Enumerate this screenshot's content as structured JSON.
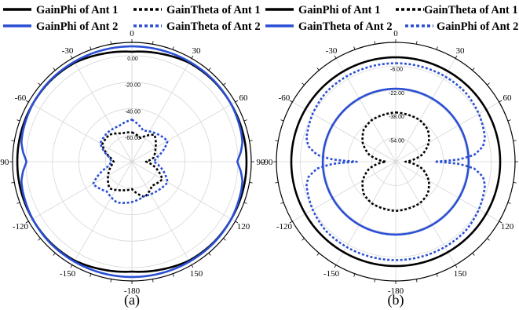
{
  "chart_data": [
    {
      "type": "polar-line",
      "panel_label": "(a)",
      "legend": [
        {
          "name": "GainPhi of Ant 1",
          "color": "#000000",
          "dashed": false
        },
        {
          "name": "GainTheta of Ant 1",
          "color": "#000000",
          "dashed": true
        },
        {
          "name": "GainPhi of Ant 2",
          "color": "#2a4fd4",
          "dashed": false
        },
        {
          "name": "GainTheta of Ant 2",
          "color": "#2a4fd4",
          "dashed": true
        }
      ],
      "angle_ticks": [
        "0",
        "30",
        "60",
        "90",
        "120",
        "150",
        "-180",
        "-150",
        "-120",
        "-90",
        "-60",
        "-30"
      ],
      "angle_tick_values": [
        0,
        30,
        60,
        90,
        120,
        150,
        180,
        -150,
        -120,
        -90,
        -60,
        -30
      ],
      "radial_ticks": [
        "0.00",
        "-20.00",
        "-40.00",
        "-60.00"
      ],
      "radial_tick_values": [
        0,
        -20,
        -40,
        -60
      ],
      "r_range_db": [
        -80,
        10
      ],
      "grid": true,
      "series": [
        {
          "name": "GainPhi of Ant 1",
          "angles": [
            0,
            15,
            30,
            45,
            60,
            75,
            90,
            105,
            120,
            135,
            150,
            165,
            180,
            195,
            210,
            225,
            240,
            255,
            270,
            285,
            300,
            315,
            330,
            345
          ],
          "values": [
            2.9,
            4.3,
            6.2,
            6.6,
            6.5,
            6.5,
            6.4,
            6.5,
            6.5,
            6.6,
            6.2,
            4.3,
            2.9,
            4.3,
            6.2,
            6.6,
            6.5,
            6.5,
            6.4,
            6.5,
            6.5,
            6.6,
            6.2,
            4.3
          ]
        },
        {
          "name": "GainPhi of Ant 2",
          "angles": [
            0,
            15,
            30,
            45,
            60,
            75,
            80,
            85,
            88,
            90,
            92,
            95,
            100,
            105,
            120,
            135,
            150,
            165,
            180,
            195,
            210,
            225,
            240,
            255,
            260,
            265,
            268,
            270,
            272,
            275,
            280,
            285,
            300,
            315,
            330,
            345
          ],
          "values": [
            7.0,
            7.0,
            7.0,
            7.0,
            6.5,
            5.3,
            4.6,
            2.4,
            0.5,
            -0.5,
            0.5,
            2.4,
            4.6,
            5.3,
            6.5,
            7.0,
            7.0,
            7.0,
            7.0,
            7.0,
            7.0,
            7.0,
            6.5,
            5.3,
            4.6,
            2.4,
            0.5,
            -0.5,
            0.5,
            2.4,
            4.6,
            5.3,
            6.5,
            7.0,
            7.0,
            7.0
          ]
        },
        {
          "name": "GainTheta of Ant 1",
          "angles": [
            0,
            20,
            40,
            60,
            80,
            90,
            100,
            120,
            140,
            160,
            180,
            200,
            220,
            240,
            260,
            270,
            280,
            300,
            320,
            340
          ],
          "values": [
            -57.9,
            -61.0,
            -53.5,
            -59.5,
            -63.6,
            -69.3,
            -63.8,
            -53.5,
            -56.4,
            -51.6,
            -59.3,
            -57.1,
            -53.7,
            -59.3,
            -64.5,
            -66.3,
            -63.8,
            -54.1,
            -53.5,
            -57.4
          ]
        },
        {
          "name": "GainTheta of Ant 2",
          "angles": [
            0,
            20,
            40,
            60,
            80,
            90,
            100,
            120,
            140,
            160,
            180,
            200,
            220,
            240,
            260,
            270,
            280,
            300,
            320,
            340
          ],
          "values": [
            -48.3,
            -55.1,
            -52.1,
            -48.9,
            -60.8,
            -63.6,
            -58.4,
            -48.9,
            -50.9,
            -52.4,
            -49.6,
            -47.2,
            -50.6,
            -46.1,
            -62.7,
            -64.5,
            -63.3,
            -52.4,
            -51.4,
            -51.4
          ]
        }
      ]
    },
    {
      "type": "polar-line",
      "panel_label": "(b)",
      "legend": [
        {
          "name": "GainPhi of Ant 1",
          "color": "#000000",
          "dashed": false
        },
        {
          "name": "GainTheta of Ant 1",
          "color": "#000000",
          "dashed": true
        },
        {
          "name": "GainTheta of Ant 2",
          "color": "#2a4fd4",
          "dashed": false
        },
        {
          "name": "GainPhi of Ant 2",
          "color": "#2a4fd4",
          "dashed": true
        }
      ],
      "angle_ticks": [
        "0",
        "30",
        "60",
        "90",
        "120",
        "150",
        "-180",
        "-150",
        "-120",
        "-90",
        "-60",
        "-30"
      ],
      "angle_tick_values": [
        0,
        30,
        60,
        90,
        120,
        150,
        180,
        -150,
        -120,
        -90,
        -60,
        -30
      ],
      "radial_ticks": [
        "-6.00",
        "-22.00",
        "-38.00",
        "-54.00"
      ],
      "radial_tick_values": [
        -6,
        -22,
        -38,
        -54
      ],
      "r_range_db": [
        -70,
        10
      ],
      "grid": true,
      "series": [
        {
          "name": "GainPhi of Ant 1",
          "angles": [
            0,
            30,
            60,
            90,
            120,
            150,
            180,
            210,
            240,
            270,
            300,
            330
          ],
          "values": [
            0.0,
            0.0,
            0.0,
            0.0,
            0.0,
            0.0,
            0.0,
            0.0,
            0.0,
            0.0,
            0.0,
            0.0
          ]
        },
        {
          "name": "GainTheta of Ant 2",
          "angles": [
            0,
            15,
            30,
            45,
            60,
            75,
            80,
            85,
            88,
            90,
            92,
            95,
            100,
            105,
            120,
            135,
            150,
            165,
            180,
            195,
            210,
            225,
            240,
            255,
            260,
            265,
            268,
            270,
            272,
            275,
            280,
            285,
            300,
            315,
            330,
            345
          ],
          "values": [
            -4.0,
            -4.0,
            -4.0,
            -4.1,
            -5.7,
            -8.1,
            -10.6,
            -17.2,
            -27.8,
            -43.9,
            -27.8,
            -17.2,
            -10.6,
            -8.1,
            -5.7,
            -4.1,
            -4.0,
            -4.0,
            -4.0,
            -4.0,
            -4.0,
            -4.1,
            -5.7,
            -8.1,
            -10.6,
            -17.2,
            -27.8,
            -43.9,
            -27.8,
            -17.2,
            -10.6,
            -8.1,
            -5.7,
            -4.1,
            -4.0,
            -4.0
          ]
        },
        {
          "name": "GainPhi of Ant 2",
          "angles": [
            0,
            30,
            60,
            90,
            120,
            150,
            180,
            210,
            240,
            270,
            300,
            330
          ],
          "values": [
            -21.1,
            -21.1,
            -21.1,
            -21.1,
            -21.1,
            -21.1,
            -21.1,
            -21.1,
            -21.1,
            -21.1,
            -21.1,
            -21.1
          ]
        },
        {
          "name": "GainTheta of Ant 1",
          "angles": [
            0,
            15,
            30,
            45,
            60,
            75,
            80,
            85,
            88,
            90,
            92,
            95,
            100,
            105,
            120,
            135,
            150,
            165,
            180,
            195,
            210,
            225,
            240,
            255,
            260,
            265,
            268,
            270,
            272,
            275,
            280,
            285,
            300,
            315,
            330,
            345
          ],
          "values": [
            -37.0,
            -37.5,
            -37.8,
            -39.6,
            -44.4,
            -51.5,
            -55.4,
            -59.4,
            -62.0,
            -63.5,
            -62.0,
            -59.4,
            -55.4,
            -51.5,
            -44.4,
            -39.6,
            -37.8,
            -37.5,
            -37.0,
            -37.5,
            -37.8,
            -39.6,
            -44.4,
            -51.5,
            -55.4,
            -59.4,
            -62.0,
            -63.5,
            -62.0,
            -59.4,
            -55.4,
            -51.5,
            -44.4,
            -39.6,
            -37.8,
            -37.5
          ]
        }
      ]
    }
  ]
}
